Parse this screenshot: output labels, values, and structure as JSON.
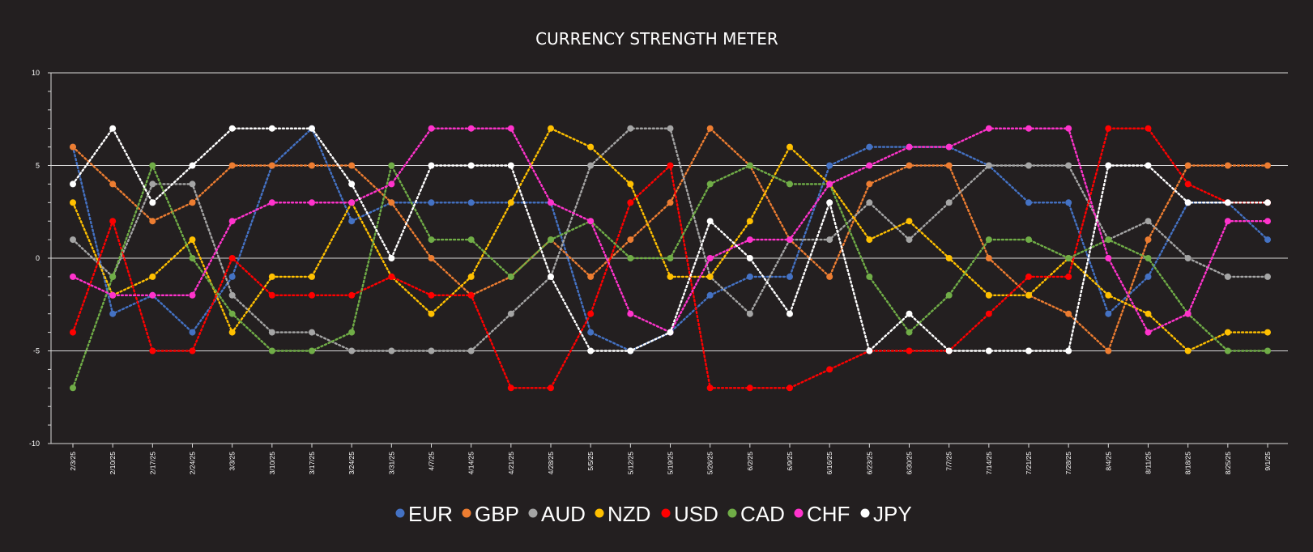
{
  "chart_data": {
    "type": "line",
    "title": "CURRENCY STRENGTH METER",
    "xlabel": "",
    "ylabel": "",
    "ylim": [
      -10,
      10
    ],
    "y_major_ticks": [
      10,
      5,
      0,
      -5,
      -10
    ],
    "y_minor_step": 1,
    "grid": "horizontal at 5, 0, -5",
    "line_style": "dotted with markers",
    "legend_position": "bottom",
    "x": [
      "2/3/25",
      "2/10/25",
      "2/17/25",
      "2/24/25",
      "3/3/25",
      "3/10/25",
      "3/17/25",
      "3/24/25",
      "3/31/25",
      "4/7/25",
      "4/14/25",
      "4/21/25",
      "4/28/25",
      "5/5/25",
      "5/12/25",
      "5/19/25",
      "5/26/25",
      "6/2/25",
      "6/9/25",
      "6/16/25",
      "6/23/25",
      "6/30/25",
      "7/7/25",
      "7/14/25",
      "7/21/25",
      "7/28/25",
      "8/4/25",
      "8/11/25",
      "8/18/25",
      "8/25/25",
      "9/1/25"
    ],
    "series": [
      {
        "name": "EUR",
        "color": "#4472c4",
        "values": [
          6,
          -3,
          -2,
          -4,
          -1,
          5,
          7,
          2,
          3,
          3,
          3,
          3,
          3,
          -4,
          -5,
          -4,
          -2,
          -1,
          -1,
          5,
          6,
          6,
          6,
          5,
          3,
          3,
          -3,
          -1,
          3,
          3,
          1
        ]
      },
      {
        "name": "GBP",
        "color": "#ed7d31",
        "values": [
          6,
          4,
          2,
          3,
          5,
          5,
          5,
          5,
          3,
          0,
          -2,
          -1,
          1,
          -1,
          1,
          3,
          7,
          5,
          1,
          -1,
          4,
          5,
          5,
          0,
          -2,
          -3,
          -5,
          1,
          5,
          5,
          5
        ]
      },
      {
        "name": "AUD",
        "color": "#a5a5a5",
        "values": [
          1,
          -1,
          4,
          4,
          -2,
          -4,
          -4,
          -5,
          -5,
          -5,
          -5,
          -3,
          -1,
          5,
          7,
          7,
          -1,
          -3,
          1,
          1,
          3,
          1,
          3,
          5,
          5,
          5,
          1,
          2,
          0,
          -1,
          -1
        ]
      },
      {
        "name": "NZD",
        "color": "#ffc000",
        "values": [
          3,
          -2,
          -1,
          1,
          -4,
          -1,
          -1,
          3,
          -1,
          -3,
          -1,
          3,
          7,
          6,
          4,
          -1,
          -1,
          2,
          6,
          4,
          1,
          2,
          0,
          -2,
          -2,
          0,
          -2,
          -3,
          -5,
          -4,
          -4
        ]
      },
      {
        "name": "USD",
        "color": "#ff0000",
        "values": [
          -4,
          2,
          -5,
          -5,
          0,
          -2,
          -2,
          -2,
          -1,
          -2,
          -2,
          -7,
          -7,
          -3,
          3,
          5,
          -7,
          -7,
          -7,
          -6,
          -5,
          -5,
          -5,
          -3,
          -1,
          -1,
          7,
          7,
          4,
          3,
          3
        ]
      },
      {
        "name": "CAD",
        "color": "#70ad47",
        "values": [
          -7,
          -1,
          5,
          0,
          -3,
          -5,
          -5,
          -4,
          5,
          1,
          1,
          -1,
          1,
          2,
          0,
          0,
          4,
          5,
          4,
          4,
          -1,
          -4,
          -2,
          1,
          1,
          0,
          1,
          0,
          -3,
          -5,
          -5
        ]
      },
      {
        "name": "CHF",
        "color": "#ff33cc",
        "values": [
          -1,
          -2,
          -2,
          -2,
          2,
          3,
          3,
          3,
          4,
          7,
          7,
          7,
          3,
          2,
          -3,
          -4,
          0,
          1,
          1,
          4,
          5,
          6,
          6,
          7,
          7,
          7,
          0,
          -4,
          -3,
          2,
          2
        ]
      },
      {
        "name": "JPY",
        "color": "#ffffff",
        "values": [
          4,
          7,
          3,
          5,
          7,
          7,
          7,
          4,
          0,
          5,
          5,
          5,
          -1,
          -5,
          -5,
          -4,
          2,
          0,
          -3,
          3,
          -5,
          -3,
          -5,
          -5,
          -5,
          -5,
          5,
          5,
          3,
          3,
          3
        ]
      }
    ]
  }
}
